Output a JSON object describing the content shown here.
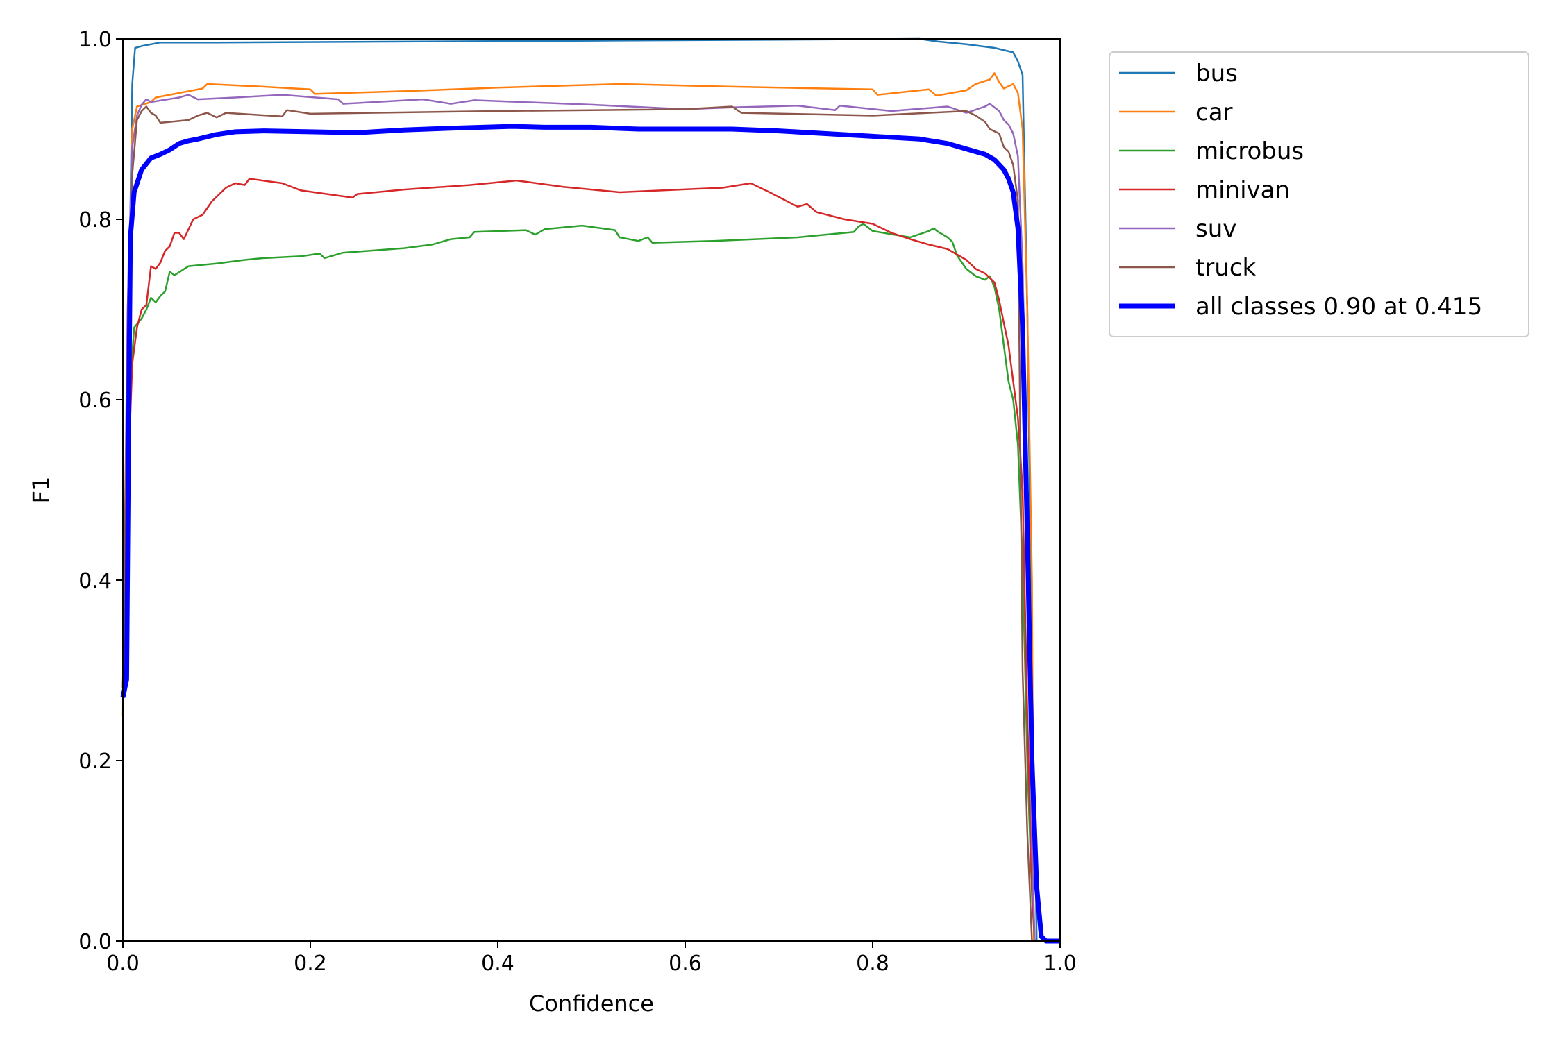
{
  "chart_data": {
    "type": "line",
    "title": "",
    "xlabel": "Confidence",
    "ylabel": "F1",
    "xlim": [
      0,
      1
    ],
    "ylim": [
      0,
      1
    ],
    "xticks": [
      "0.0",
      "0.2",
      "0.4",
      "0.6",
      "0.8",
      "1.0"
    ],
    "yticks": [
      "0.0",
      "0.2",
      "0.4",
      "0.6",
      "0.8",
      "1.0"
    ],
    "grid": false,
    "legend_position": "outside-top-right",
    "series": [
      {
        "name": "bus",
        "color": "#1f77b4",
        "width": 2.5,
        "points": [
          [
            0.0,
            0.28
          ],
          [
            0.005,
            0.6
          ],
          [
            0.01,
            0.95
          ],
          [
            0.013,
            0.99
          ],
          [
            0.02,
            0.992
          ],
          [
            0.04,
            0.996
          ],
          [
            0.1,
            0.996
          ],
          [
            0.3,
            0.997
          ],
          [
            0.5,
            0.998
          ],
          [
            0.7,
            0.999
          ],
          [
            0.85,
            1.0
          ],
          [
            0.87,
            0.997
          ],
          [
            0.9,
            0.994
          ],
          [
            0.93,
            0.99
          ],
          [
            0.95,
            0.985
          ],
          [
            0.955,
            0.975
          ],
          [
            0.96,
            0.96
          ],
          [
            0.965,
            0.7
          ],
          [
            0.97,
            0.3
          ],
          [
            0.975,
            0.0
          ],
          [
            1.0,
            0.0
          ]
        ]
      },
      {
        "name": "car",
        "color": "#ff7f0e",
        "width": 2.5,
        "points": [
          [
            0.0,
            0.25
          ],
          [
            0.005,
            0.6
          ],
          [
            0.01,
            0.9
          ],
          [
            0.015,
            0.925
          ],
          [
            0.03,
            0.93
          ],
          [
            0.035,
            0.935
          ],
          [
            0.06,
            0.94
          ],
          [
            0.085,
            0.945
          ],
          [
            0.09,
            0.95
          ],
          [
            0.15,
            0.947
          ],
          [
            0.2,
            0.944
          ],
          [
            0.205,
            0.939
          ],
          [
            0.3,
            0.942
          ],
          [
            0.4,
            0.946
          ],
          [
            0.53,
            0.95
          ],
          [
            0.65,
            0.947
          ],
          [
            0.8,
            0.944
          ],
          [
            0.805,
            0.938
          ],
          [
            0.86,
            0.944
          ],
          [
            0.868,
            0.937
          ],
          [
            0.9,
            0.943
          ],
          [
            0.91,
            0.95
          ],
          [
            0.925,
            0.955
          ],
          [
            0.93,
            0.962
          ],
          [
            0.935,
            0.952
          ],
          [
            0.94,
            0.945
          ],
          [
            0.95,
            0.95
          ],
          [
            0.955,
            0.94
          ],
          [
            0.96,
            0.9
          ],
          [
            0.965,
            0.7
          ],
          [
            0.97,
            0.4
          ],
          [
            0.972,
            0.0
          ],
          [
            1.0,
            0.0
          ]
        ]
      },
      {
        "name": "microbus",
        "color": "#2ca02c",
        "width": 2.5,
        "points": [
          [
            0.0,
            0.27
          ],
          [
            0.004,
            0.5
          ],
          [
            0.008,
            0.62
          ],
          [
            0.012,
            0.68
          ],
          [
            0.02,
            0.69
          ],
          [
            0.025,
            0.7
          ],
          [
            0.03,
            0.713
          ],
          [
            0.035,
            0.708
          ],
          [
            0.04,
            0.715
          ],
          [
            0.045,
            0.72
          ],
          [
            0.05,
            0.742
          ],
          [
            0.055,
            0.738
          ],
          [
            0.07,
            0.748
          ],
          [
            0.1,
            0.751
          ],
          [
            0.13,
            0.755
          ],
          [
            0.15,
            0.757
          ],
          [
            0.19,
            0.759
          ],
          [
            0.21,
            0.762
          ],
          [
            0.215,
            0.757
          ],
          [
            0.235,
            0.763
          ],
          [
            0.3,
            0.768
          ],
          [
            0.33,
            0.772
          ],
          [
            0.35,
            0.778
          ],
          [
            0.37,
            0.78
          ],
          [
            0.375,
            0.786
          ],
          [
            0.43,
            0.788
          ],
          [
            0.44,
            0.783
          ],
          [
            0.45,
            0.789
          ],
          [
            0.49,
            0.793
          ],
          [
            0.525,
            0.788
          ],
          [
            0.53,
            0.78
          ],
          [
            0.535,
            0.779
          ],
          [
            0.55,
            0.776
          ],
          [
            0.56,
            0.78
          ],
          [
            0.565,
            0.774
          ],
          [
            0.63,
            0.776
          ],
          [
            0.72,
            0.78
          ],
          [
            0.78,
            0.786
          ],
          [
            0.785,
            0.792
          ],
          [
            0.79,
            0.795
          ],
          [
            0.8,
            0.787
          ],
          [
            0.84,
            0.78
          ],
          [
            0.86,
            0.787
          ],
          [
            0.865,
            0.79
          ],
          [
            0.87,
            0.786
          ],
          [
            0.875,
            0.783
          ],
          [
            0.88,
            0.78
          ],
          [
            0.885,
            0.775
          ],
          [
            0.89,
            0.76
          ],
          [
            0.9,
            0.745
          ],
          [
            0.91,
            0.737
          ],
          [
            0.92,
            0.733
          ],
          [
            0.925,
            0.737
          ],
          [
            0.93,
            0.725
          ],
          [
            0.935,
            0.7
          ],
          [
            0.94,
            0.66
          ],
          [
            0.945,
            0.62
          ],
          [
            0.95,
            0.6
          ],
          [
            0.955,
            0.55
          ],
          [
            0.96,
            0.42
          ],
          [
            0.965,
            0.2
          ],
          [
            0.97,
            0.05
          ],
          [
            0.973,
            0.0
          ],
          [
            1.0,
            0.0
          ]
        ]
      },
      {
        "name": "minivan",
        "color": "#d62728",
        "width": 2.5,
        "points": [
          [
            0.0,
            0.28
          ],
          [
            0.005,
            0.5
          ],
          [
            0.01,
            0.64
          ],
          [
            0.015,
            0.68
          ],
          [
            0.02,
            0.7
          ],
          [
            0.025,
            0.705
          ],
          [
            0.03,
            0.748
          ],
          [
            0.035,
            0.745
          ],
          [
            0.04,
            0.752
          ],
          [
            0.045,
            0.765
          ],
          [
            0.05,
            0.77
          ],
          [
            0.055,
            0.785
          ],
          [
            0.06,
            0.785
          ],
          [
            0.065,
            0.778
          ],
          [
            0.075,
            0.8
          ],
          [
            0.085,
            0.805
          ],
          [
            0.095,
            0.82
          ],
          [
            0.11,
            0.835
          ],
          [
            0.12,
            0.84
          ],
          [
            0.13,
            0.838
          ],
          [
            0.135,
            0.845
          ],
          [
            0.17,
            0.84
          ],
          [
            0.19,
            0.832
          ],
          [
            0.245,
            0.824
          ],
          [
            0.25,
            0.828
          ],
          [
            0.3,
            0.833
          ],
          [
            0.37,
            0.838
          ],
          [
            0.42,
            0.843
          ],
          [
            0.47,
            0.836
          ],
          [
            0.53,
            0.83
          ],
          [
            0.64,
            0.835
          ],
          [
            0.67,
            0.84
          ],
          [
            0.69,
            0.83
          ],
          [
            0.72,
            0.814
          ],
          [
            0.73,
            0.817
          ],
          [
            0.74,
            0.808
          ],
          [
            0.77,
            0.8
          ],
          [
            0.8,
            0.795
          ],
          [
            0.82,
            0.785
          ],
          [
            0.84,
            0.778
          ],
          [
            0.86,
            0.772
          ],
          [
            0.88,
            0.767
          ],
          [
            0.9,
            0.755
          ],
          [
            0.91,
            0.745
          ],
          [
            0.92,
            0.74
          ],
          [
            0.93,
            0.73
          ],
          [
            0.935,
            0.71
          ],
          [
            0.94,
            0.685
          ],
          [
            0.945,
            0.66
          ],
          [
            0.95,
            0.62
          ],
          [
            0.955,
            0.58
          ],
          [
            0.96,
            0.5
          ],
          [
            0.965,
            0.25
          ],
          [
            0.97,
            0.06
          ],
          [
            0.973,
            0.0
          ],
          [
            1.0,
            0.0
          ]
        ]
      },
      {
        "name": "suv",
        "color": "#9467bd",
        "width": 2.5,
        "points": [
          [
            0.0,
            0.28
          ],
          [
            0.005,
            0.7
          ],
          [
            0.01,
            0.88
          ],
          [
            0.015,
            0.915
          ],
          [
            0.02,
            0.927
          ],
          [
            0.025,
            0.933
          ],
          [
            0.03,
            0.93
          ],
          [
            0.06,
            0.935
          ],
          [
            0.07,
            0.938
          ],
          [
            0.08,
            0.933
          ],
          [
            0.12,
            0.935
          ],
          [
            0.17,
            0.938
          ],
          [
            0.23,
            0.933
          ],
          [
            0.235,
            0.928
          ],
          [
            0.32,
            0.933
          ],
          [
            0.35,
            0.928
          ],
          [
            0.375,
            0.932
          ],
          [
            0.5,
            0.927
          ],
          [
            0.6,
            0.922
          ],
          [
            0.65,
            0.924
          ],
          [
            0.72,
            0.926
          ],
          [
            0.76,
            0.921
          ],
          [
            0.765,
            0.926
          ],
          [
            0.82,
            0.92
          ],
          [
            0.88,
            0.925
          ],
          [
            0.9,
            0.918
          ],
          [
            0.92,
            0.925
          ],
          [
            0.925,
            0.928
          ],
          [
            0.935,
            0.92
          ],
          [
            0.94,
            0.91
          ],
          [
            0.945,
            0.905
          ],
          [
            0.95,
            0.895
          ],
          [
            0.955,
            0.87
          ],
          [
            0.96,
            0.75
          ],
          [
            0.965,
            0.5
          ],
          [
            0.97,
            0.1
          ],
          [
            0.973,
            0.0
          ],
          [
            1.0,
            0.0
          ]
        ]
      },
      {
        "name": "truck",
        "color": "#8c564b",
        "width": 2.5,
        "points": [
          [
            0.0,
            0.28
          ],
          [
            0.005,
            0.65
          ],
          [
            0.01,
            0.85
          ],
          [
            0.015,
            0.91
          ],
          [
            0.02,
            0.92
          ],
          [
            0.025,
            0.925
          ],
          [
            0.03,
            0.918
          ],
          [
            0.035,
            0.915
          ],
          [
            0.04,
            0.907
          ],
          [
            0.05,
            0.908
          ],
          [
            0.07,
            0.91
          ],
          [
            0.08,
            0.915
          ],
          [
            0.09,
            0.918
          ],
          [
            0.1,
            0.913
          ],
          [
            0.11,
            0.918
          ],
          [
            0.17,
            0.914
          ],
          [
            0.175,
            0.921
          ],
          [
            0.2,
            0.917
          ],
          [
            0.4,
            0.92
          ],
          [
            0.6,
            0.922
          ],
          [
            0.65,
            0.925
          ],
          [
            0.66,
            0.918
          ],
          [
            0.8,
            0.915
          ],
          [
            0.9,
            0.92
          ],
          [
            0.91,
            0.915
          ],
          [
            0.92,
            0.908
          ],
          [
            0.925,
            0.9
          ],
          [
            0.935,
            0.895
          ],
          [
            0.94,
            0.88
          ],
          [
            0.945,
            0.875
          ],
          [
            0.95,
            0.86
          ],
          [
            0.955,
            0.82
          ],
          [
            0.96,
            0.3
          ],
          [
            0.965,
            0.12
          ],
          [
            0.97,
            0.0
          ],
          [
            1.0,
            0.0
          ]
        ]
      },
      {
        "name": "all classes 0.90 at 0.415",
        "color": "#0000ff",
        "width": 7,
        "points": [
          [
            0.0,
            0.27
          ],
          [
            0.004,
            0.29
          ],
          [
            0.006,
            0.55
          ],
          [
            0.008,
            0.78
          ],
          [
            0.012,
            0.83
          ],
          [
            0.02,
            0.855
          ],
          [
            0.03,
            0.868
          ],
          [
            0.04,
            0.872
          ],
          [
            0.05,
            0.877
          ],
          [
            0.06,
            0.884
          ],
          [
            0.07,
            0.887
          ],
          [
            0.08,
            0.889
          ],
          [
            0.1,
            0.894
          ],
          [
            0.12,
            0.897
          ],
          [
            0.15,
            0.898
          ],
          [
            0.2,
            0.897
          ],
          [
            0.25,
            0.896
          ],
          [
            0.3,
            0.899
          ],
          [
            0.35,
            0.901
          ],
          [
            0.415,
            0.903
          ],
          [
            0.45,
            0.902
          ],
          [
            0.5,
            0.902
          ],
          [
            0.55,
            0.9
          ],
          [
            0.6,
            0.9
          ],
          [
            0.65,
            0.9
          ],
          [
            0.7,
            0.898
          ],
          [
            0.75,
            0.895
          ],
          [
            0.8,
            0.892
          ],
          [
            0.85,
            0.889
          ],
          [
            0.88,
            0.884
          ],
          [
            0.9,
            0.878
          ],
          [
            0.92,
            0.872
          ],
          [
            0.93,
            0.866
          ],
          [
            0.94,
            0.855
          ],
          [
            0.945,
            0.845
          ],
          [
            0.95,
            0.83
          ],
          [
            0.955,
            0.79
          ],
          [
            0.96,
            0.68
          ],
          [
            0.965,
            0.45
          ],
          [
            0.97,
            0.2
          ],
          [
            0.975,
            0.06
          ],
          [
            0.98,
            0.005
          ],
          [
            0.985,
            0.0
          ],
          [
            1.0,
            0.0
          ]
        ]
      }
    ]
  }
}
